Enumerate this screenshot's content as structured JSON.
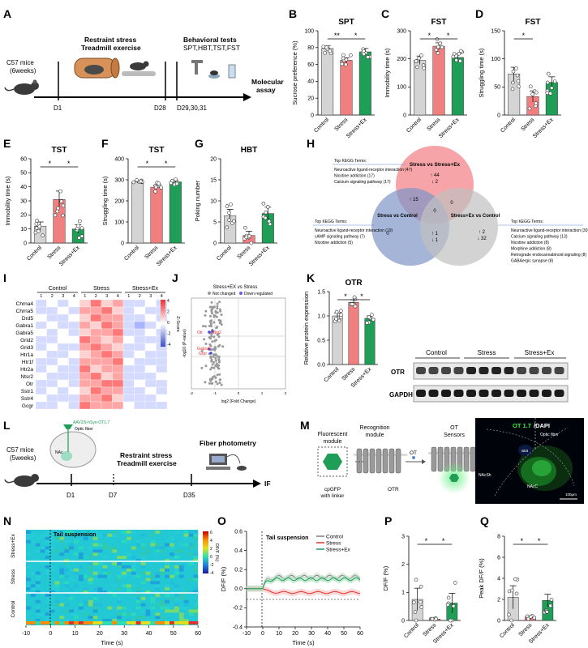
{
  "panel_labels": [
    "A",
    "B",
    "C",
    "D",
    "E",
    "F",
    "G",
    "H",
    "I",
    "J",
    "K",
    "L",
    "M",
    "N",
    "O",
    "P",
    "Q"
  ],
  "panelA": {
    "mice": "C57 mice",
    "age": "(6weeks)",
    "stress_line1": "Restraint stress",
    "stress_line2": "Treadmill exercise",
    "tests_line1": "Behavioral tests",
    "tests_line2": "SPT,HBT,TST,FST",
    "d1": "D1",
    "d28": "D28",
    "d29": "D29,30,31",
    "molecular1": "Molecular",
    "molecular2": "assay"
  },
  "groups": [
    "Control",
    "Stress",
    "Stress+Ex"
  ],
  "colors": {
    "control": "#d4d4d4",
    "stress": "#f08080",
    "ex": "#1e9e57",
    "red": "#e8312f",
    "blue": "#8ea6cf"
  },
  "sig": "*",
  "sig2": "**",
  "bars": [
    {
      "id": "B",
      "title": "SPT",
      "ylabel": "Sucrose preference (%)",
      "ticks": [
        "0",
        "20",
        "40",
        "60",
        "80",
        "100"
      ],
      "ymax": 100,
      "values": [
        79,
        65,
        75
      ],
      "errs": [
        3,
        3,
        4
      ]
    },
    {
      "id": "C",
      "title": "FST",
      "ylabel": "Immobility time (s)",
      "ticks": [
        "0",
        "100",
        "200",
        "300"
      ],
      "ymax": 300,
      "values": [
        195,
        245,
        205
      ],
      "errs": [
        15,
        12,
        12
      ]
    },
    {
      "id": "D",
      "title": "FST",
      "ylabel": "Struggling time (s)",
      "ticks": [
        "0",
        "50",
        "100",
        "150"
      ],
      "ymax": 150,
      "values": [
        73,
        33,
        58
      ],
      "errs": [
        12,
        10,
        10
      ]
    },
    {
      "id": "E",
      "title": "TST",
      "ylabel": "Immobility time (s)",
      "ticks": [
        "0",
        "10",
        "20",
        "30",
        "40",
        "50",
        "60"
      ],
      "ymax": 60,
      "values": [
        12,
        31,
        10
      ],
      "errs": [
        3,
        6,
        3
      ]
    },
    {
      "id": "F",
      "title": "TST",
      "ylabel": "Struggling time (s)",
      "ticks": [
        "0",
        "100",
        "200",
        "300",
        "400"
      ],
      "ymax": 400,
      "values": [
        290,
        265,
        290
      ],
      "errs": [
        5,
        10,
        6
      ]
    },
    {
      "id": "G",
      "title": "HBT",
      "ylabel": "Poking number",
      "ticks": [
        "0",
        "5",
        "10",
        "15",
        "20"
      ],
      "ymax": 20,
      "values": [
        6.5,
        1.8,
        7
      ],
      "errs": [
        1.5,
        1,
        1.5
      ]
    },
    {
      "id": "K",
      "title": "OTR",
      "ylabel": "Relative protein expression",
      "ticks": [
        "0.0",
        "0.5",
        "1.0",
        "1.5"
      ],
      "ymax": 1.5,
      "values": [
        1.0,
        1.28,
        0.95
      ],
      "errs": [
        0.06,
        0.05,
        0.05
      ]
    },
    {
      "id": "P",
      "title": "",
      "ylabel": "DF/F (%)",
      "ticks": [
        "0",
        "1",
        "2",
        "3"
      ],
      "ymax": 3,
      "values": [
        0.75,
        0.05,
        0.62
      ],
      "errs": [
        0.4,
        0.02,
        0.35
      ]
    },
    {
      "id": "Q",
      "title": "",
      "ylabel": "Peak DF/F (%)",
      "ticks": [
        "0",
        "2",
        "4",
        "6",
        "8"
      ],
      "ymax": 8,
      "values": [
        2.2,
        0.35,
        1.9
      ],
      "errs": [
        1.1,
        0.1,
        0.6
      ]
    }
  ],
  "venn": {
    "a_title": "Stress vs Stress+Ex",
    "b_title": "Stress vs Control",
    "c_title": "Stress+Ex vs Control",
    "a_up": "↑ 44",
    "a_down": "↓ 2",
    "ab_up": "↑ 15",
    "ac": "0",
    "abc": "0",
    "b_only": "0",
    "bc_up": "↑ 1",
    "bc_down": "↓ 1",
    "c_up": "↑ 2",
    "c_down": "↓ 32",
    "kegg_title": "Top KEGG Terms:",
    "kegg_top": [
      "Neuroactive ligand-receptor interaction (47)",
      "Nicotine addiction (17)",
      "Calcium signaling pathway (17)"
    ],
    "kegg_left": [
      "Neuroactive ligand-receptor interaction (19)",
      "cAMP signaling pathway (7)",
      "Nicotine addiction (5)"
    ],
    "kegg_right": [
      "Neuroactive ligand-receptor interaction (30)",
      "Calcium signaling pathway (13)",
      "Nicotine addiction (8)",
      "Morphine addiction (8)",
      "Retrograde endocannabinoid signaling (8)",
      "GABAergic synapse (8)"
    ]
  },
  "heatmap": {
    "genes": [
      "Chrna4",
      "Chrna5",
      "Drd5",
      "Gabra1",
      "Gabra5",
      "Grid2",
      "Grid3",
      "Htr1a",
      "Htr1f",
      "Htr2a",
      "Ntsr2",
      "Otr",
      "Sstr1",
      "Sstr4",
      "Gcgr"
    ],
    "groups": [
      "Control",
      "Stress",
      "Stress+Ex"
    ],
    "cols": [
      "1",
      "2",
      "3",
      "4"
    ],
    "zlabel": "Z-Score",
    "zticks": [
      "4",
      "2",
      "0",
      "-2",
      "-4"
    ],
    "values": [
      [
        -1,
        0,
        -1,
        0,
        1,
        3,
        1,
        2,
        -1,
        -1,
        0,
        -1
      ],
      [
        -1,
        -1,
        0,
        -1,
        2,
        2,
        3,
        1,
        -1,
        0,
        -1,
        -1
      ],
      [
        0,
        -1,
        -1,
        0,
        1,
        3,
        2,
        2,
        -1,
        -1,
        0,
        -1
      ],
      [
        -1,
        0,
        -1,
        -1,
        2,
        1,
        3,
        2,
        -1,
        -2,
        -1,
        0
      ],
      [
        0,
        -1,
        0,
        -1,
        1,
        2,
        2,
        3,
        -1,
        -1,
        0,
        -1
      ],
      [
        -1,
        -1,
        0,
        0,
        3,
        2,
        1,
        2,
        0,
        -1,
        -1,
        -1
      ],
      [
        -1,
        0,
        -1,
        -1,
        2,
        3,
        2,
        1,
        -1,
        -1,
        0,
        -1
      ],
      [
        0,
        -1,
        -1,
        0,
        1,
        2,
        3,
        2,
        -1,
        0,
        -1,
        -1
      ],
      [
        -1,
        -1,
        0,
        -1,
        2,
        2,
        2,
        3,
        0,
        -1,
        -1,
        -1
      ],
      [
        -1,
        0,
        -1,
        -1,
        3,
        1,
        2,
        2,
        -1,
        -1,
        0,
        -1
      ],
      [
        0,
        -1,
        -1,
        -1,
        2,
        3,
        1,
        2,
        -1,
        -1,
        -1,
        0
      ],
      [
        -1,
        -1,
        0,
        -1,
        2,
        2,
        3,
        3,
        -1,
        0,
        -1,
        -1
      ],
      [
        -1,
        0,
        -1,
        0,
        1,
        3,
        2,
        2,
        -1,
        -1,
        0,
        -1
      ],
      [
        0,
        -1,
        -1,
        -1,
        2,
        2,
        3,
        1,
        -1,
        -1,
        -1,
        0
      ],
      [
        -1,
        -1,
        0,
        -1,
        3,
        2,
        2,
        2,
        0,
        -1,
        -1,
        -1
      ]
    ]
  },
  "volcano": {
    "title": "Stress+EX vs Stress",
    "legend_nc": "Not changed",
    "legend_down": "Down regulated",
    "xlabel": "log2 (Fold Change)",
    "ylabel": "-log10 (P-value)",
    "xticks": [
      "-2",
      "-1",
      "0",
      "1",
      "2"
    ],
    "labels": [
      "Otr",
      "Ntsr2",
      "Gabra5",
      "Grpr"
    ]
  },
  "blot": {
    "groups": [
      "Control",
      "Stress",
      "Stress+Ex"
    ],
    "bands": [
      "OTR",
      "GAPDH"
    ]
  },
  "panelL": {
    "mice": "C57 mice",
    "age": "(5weeks)",
    "virus": "AAV2/9-hSyn-OT1.7",
    "fiber": "Optic fiber",
    "nac": "NAc",
    "stress_line1": "Restraint stress",
    "stress_line2": "Treadmill exercise",
    "photometry": "Fiber photometry",
    "d1": "D1",
    "d7": "D7",
    "d35": "D35",
    "end": "IF"
  },
  "panelM": {
    "fluor1": "Fluorescent",
    "fluor2": "module",
    "recog1": "Recognition",
    "recog2": "module",
    "ot": "OT",
    "sens1": "OT",
    "sens2": "Sensors",
    "cpgfp1": "cpGFP",
    "cpgfp2": "with linker",
    "otr": "OTR",
    "img_title_a": "OT 1.7",
    "img_title_b": "/DAPI",
    "fiber": "Optic fiber",
    "aca": "aca",
    "nacsh": "NAcSh",
    "nacc": "NAcC",
    "scale": "100μm"
  },
  "panelN": {
    "title": "Tail suspension",
    "xlabel": "Time (s)",
    "xticks": [
      "-10",
      "0",
      "10",
      "20",
      "30",
      "40",
      "50",
      "60"
    ],
    "rows": [
      "Stress+Ex",
      "Stress",
      "Control"
    ],
    "cb_label": "DF/F (%)",
    "cb_ticks": [
      "6",
      "4",
      "2",
      "0",
      "-2",
      "-4"
    ]
  },
  "panelO": {
    "title": "Tail suspension",
    "xlabel": "Time (s)",
    "ylabel": "DF/F (%)",
    "xticks": [
      "-10",
      "0",
      "10",
      "20",
      "30",
      "40",
      "50",
      "60"
    ],
    "yticks": [
      "-0.4",
      "-0.2",
      "0.0",
      "0.2",
      "0.4",
      "0.6"
    ],
    "legend": [
      "Control",
      "Stress",
      "Stress+Ex"
    ]
  }
}
